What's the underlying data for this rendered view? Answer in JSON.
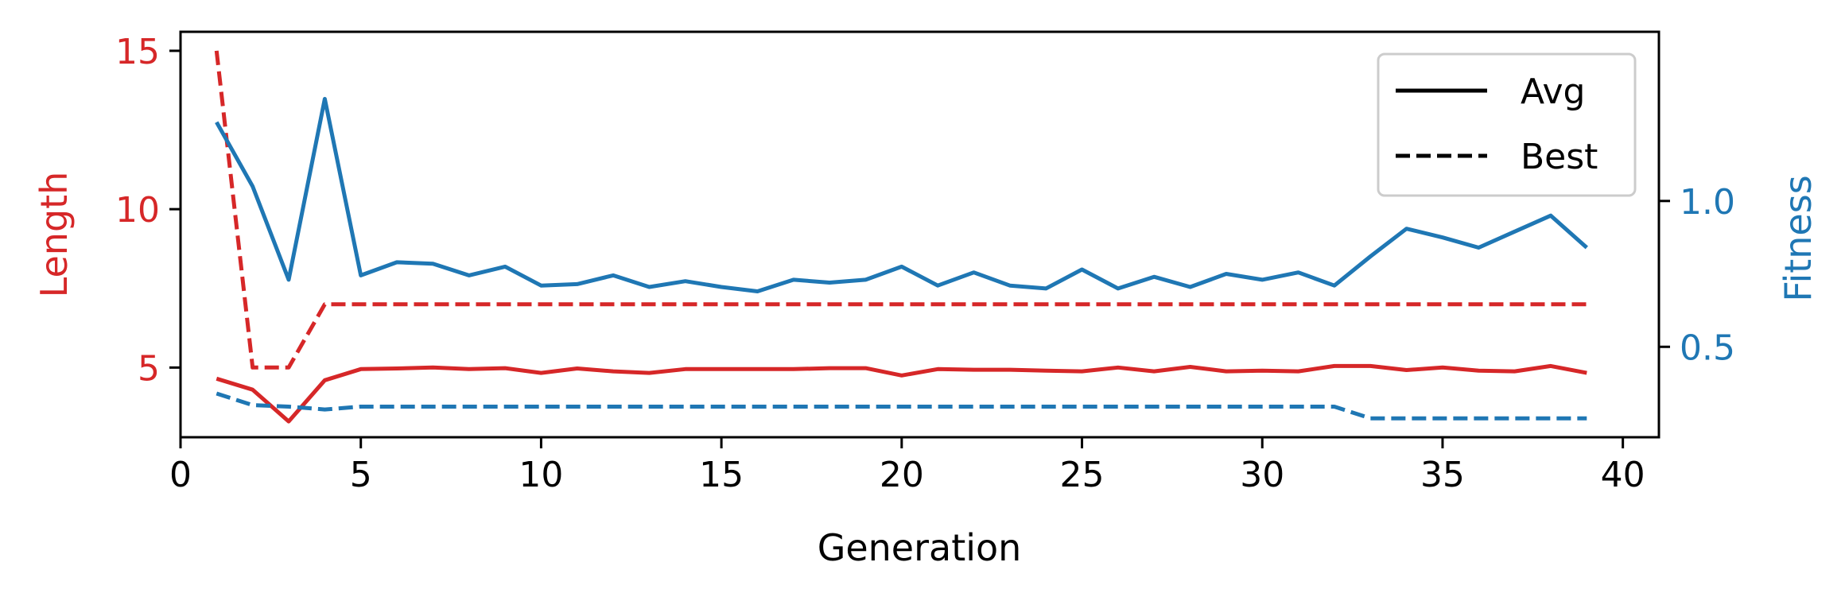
{
  "chart_data": {
    "type": "line",
    "xlabel": "Generation",
    "ylabel_left": "Length",
    "ylabel_right": "Fitness",
    "xlim": [
      0,
      41
    ],
    "ylim_left": [
      2.8,
      15.6
    ],
    "ylim_right": [
      0.19,
      1.58
    ],
    "x_ticks": [
      0,
      5,
      10,
      15,
      20,
      25,
      30,
      35,
      40
    ],
    "y_left_ticks": [
      5,
      10,
      15
    ],
    "y_right_ticks": [
      0.5,
      1.0
    ],
    "colors": {
      "length": "#d62728",
      "fitness": "#1f77b4"
    },
    "legend": {
      "placement": "top-right",
      "entries": [
        {
          "label": "Avg",
          "style": "solid"
        },
        {
          "label": "Best",
          "style": "dashed"
        }
      ]
    },
    "x": [
      1,
      2,
      3,
      4,
      5,
      6,
      7,
      8,
      9,
      10,
      11,
      12,
      13,
      14,
      15,
      16,
      17,
      18,
      19,
      20,
      21,
      22,
      23,
      24,
      25,
      26,
      27,
      28,
      29,
      30,
      31,
      32,
      33,
      34,
      35,
      36,
      37,
      38,
      39
    ],
    "series": [
      {
        "name": "Avg",
        "quantity": "Length",
        "axis": "left",
        "style": "solid",
        "values": [
          4.65,
          4.3,
          3.3,
          4.6,
          4.95,
          4.97,
          5.0,
          4.95,
          4.98,
          4.83,
          4.97,
          4.88,
          4.83,
          4.95,
          4.95,
          4.95,
          4.95,
          4.98,
          4.98,
          4.75,
          4.95,
          4.93,
          4.93,
          4.9,
          4.88,
          5.0,
          4.88,
          5.02,
          4.88,
          4.9,
          4.88,
          5.05,
          5.05,
          4.92,
          5.0,
          4.9,
          4.88,
          5.05,
          4.83
        ]
      },
      {
        "name": "Best",
        "quantity": "Length",
        "axis": "left",
        "style": "dashed",
        "values": [
          15,
          5,
          5,
          7,
          7,
          7,
          7,
          7,
          7,
          7,
          7,
          7,
          7,
          7,
          7,
          7,
          7,
          7,
          7,
          7,
          7,
          7,
          7,
          7,
          7,
          7,
          7,
          7,
          7,
          7,
          7,
          7,
          7,
          7,
          7,
          7,
          7,
          7,
          7
        ]
      },
      {
        "name": "Avg",
        "quantity": "Fitness",
        "axis": "right",
        "style": "solid",
        "values": [
          1.27,
          1.05,
          0.73,
          1.35,
          0.745,
          0.79,
          0.785,
          0.745,
          0.775,
          0.71,
          0.715,
          0.745,
          0.705,
          0.725,
          0.705,
          0.69,
          0.73,
          0.72,
          0.73,
          0.775,
          0.71,
          0.755,
          0.71,
          0.7,
          0.765,
          0.7,
          0.74,
          0.705,
          0.75,
          0.73,
          0.755,
          0.71,
          0.81,
          0.905,
          0.875,
          0.84,
          0.895,
          0.95,
          0.84
        ]
      },
      {
        "name": "Best",
        "quantity": "Fitness",
        "axis": "right",
        "style": "dashed",
        "values": [
          0.34,
          0.3,
          0.295,
          0.285,
          0.295,
          0.295,
          0.295,
          0.295,
          0.295,
          0.295,
          0.295,
          0.295,
          0.295,
          0.295,
          0.295,
          0.295,
          0.295,
          0.295,
          0.295,
          0.295,
          0.295,
          0.295,
          0.295,
          0.295,
          0.295,
          0.295,
          0.295,
          0.295,
          0.295,
          0.295,
          0.295,
          0.295,
          0.255,
          0.255,
          0.255,
          0.255,
          0.255,
          0.255,
          0.255
        ]
      }
    ]
  }
}
